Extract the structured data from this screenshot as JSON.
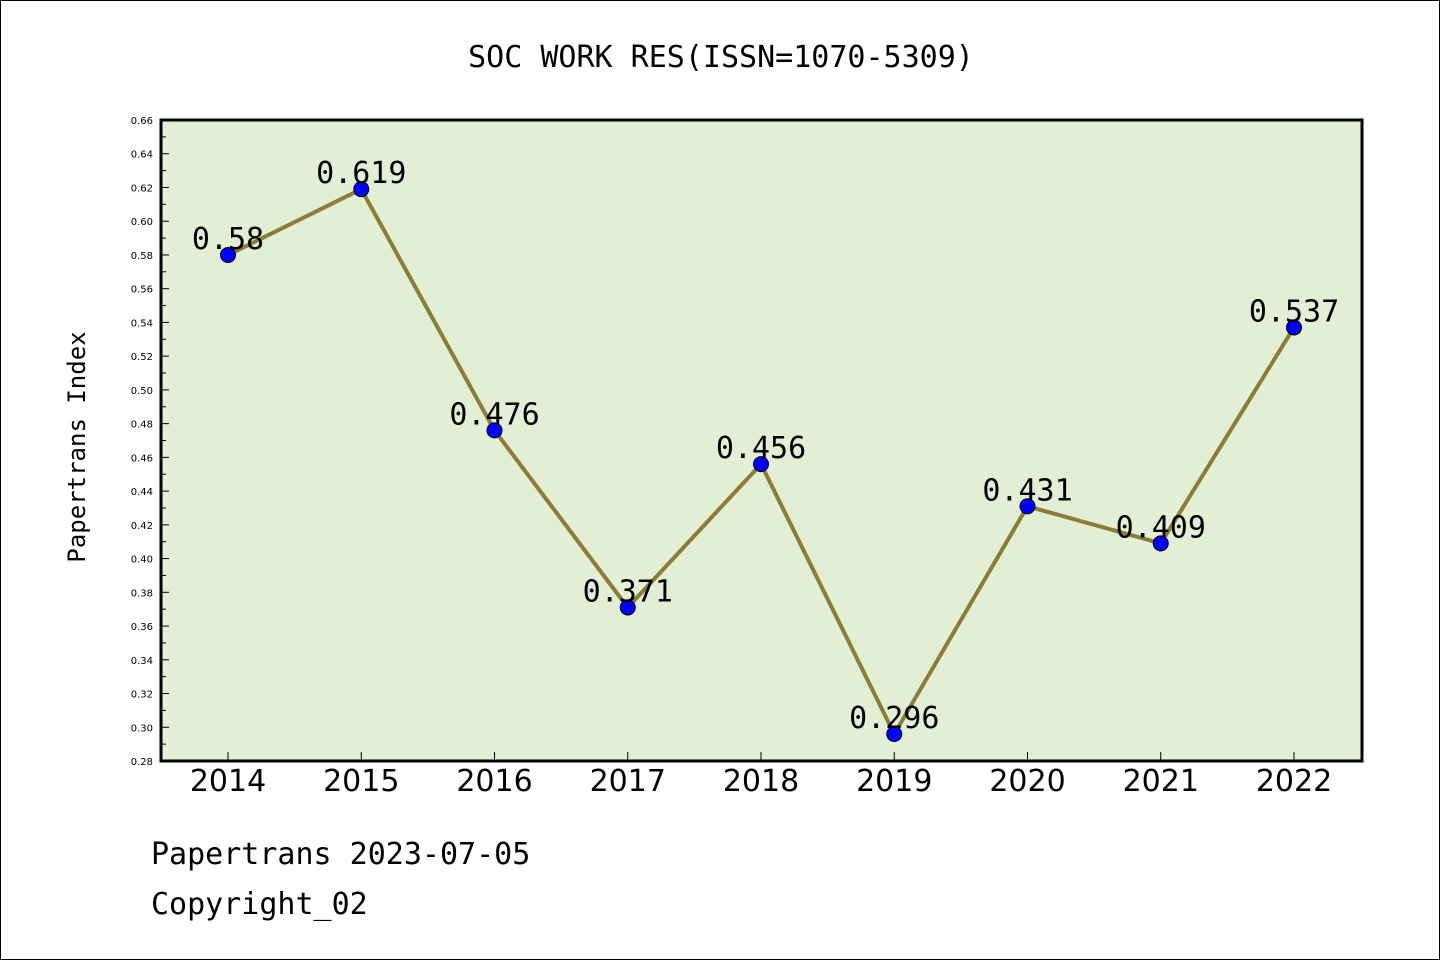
{
  "chart_data": {
    "type": "line",
    "title": "SOC WORK RES(ISSN=1070-5309)",
    "xlabel": "",
    "ylabel": "Papertrans Index",
    "categories": [
      "2014",
      "2015",
      "2016",
      "2017",
      "2018",
      "2019",
      "2020",
      "2021",
      "2022"
    ],
    "series": [
      {
        "values": [
          0.58,
          0.619,
          0.476,
          0.371,
          0.456,
          0.296,
          0.431,
          0.409,
          0.537
        ]
      }
    ],
    "data_labels": [
      "0.58",
      "0.619",
      "0.476",
      "0.371",
      "0.456",
      "0.296",
      "0.431",
      "0.409",
      "0.537"
    ],
    "ylim": [
      0.28,
      0.66
    ],
    "yticks": [
      "0.28",
      "0.30",
      "0.32",
      "0.34",
      "0.36",
      "0.38",
      "0.40",
      "0.42",
      "0.44",
      "0.46",
      "0.48",
      "0.50",
      "0.52",
      "0.54",
      "0.56",
      "0.58",
      "0.60",
      "0.62",
      "0.64",
      "0.66"
    ],
    "grid": false,
    "legend": "none",
    "colors": {
      "plot_background": "#e2efd5",
      "line": "#8b7d37",
      "marker": "#0000ff"
    }
  },
  "footer": {
    "line1": "Papertrans 2023-07-05",
    "line2": "Copyright_02"
  }
}
